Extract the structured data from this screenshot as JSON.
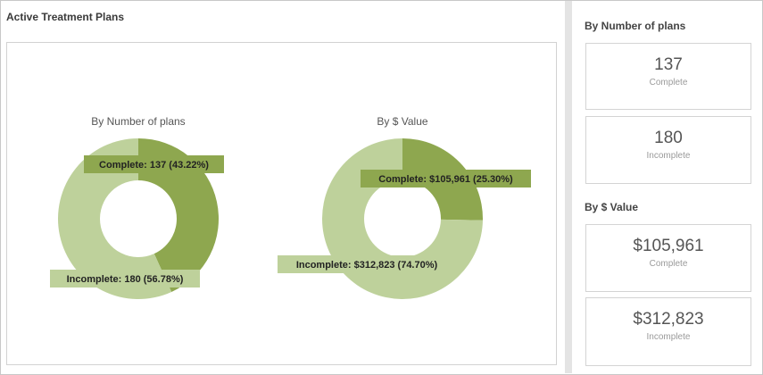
{
  "title": "Active Treatment Plans",
  "chart_data": [
    {
      "type": "pie",
      "subtype": "donut",
      "title": "By Number of plans",
      "categories": [
        "Complete",
        "Incomplete"
      ],
      "values": [
        137,
        180
      ],
      "labels": [
        "Complete: 137 (43.22%)",
        "Incomplete: 180 (56.78%)"
      ],
      "colors": [
        "#8ea74f",
        "#bed19b"
      ]
    },
    {
      "type": "pie",
      "subtype": "donut",
      "title": "By $ Value",
      "categories": [
        "Complete",
        "Incomplete"
      ],
      "values": [
        105961,
        312823
      ],
      "labels": [
        "Complete: $105,961 (25.30%)",
        "Incomplete: $312,823 (74.70%)"
      ],
      "colors": [
        "#8ea74f",
        "#bed19b"
      ]
    }
  ],
  "summary": {
    "by_number": {
      "title": "By Number of plans",
      "complete": {
        "value": "137",
        "label": "Complete"
      },
      "incomplete": {
        "value": "180",
        "label": "Incomplete"
      }
    },
    "by_value": {
      "title": "By $ Value",
      "complete": {
        "value": "$105,961",
        "label": "Complete"
      },
      "incomplete": {
        "value": "$312,823",
        "label": "Incomplete"
      }
    }
  }
}
